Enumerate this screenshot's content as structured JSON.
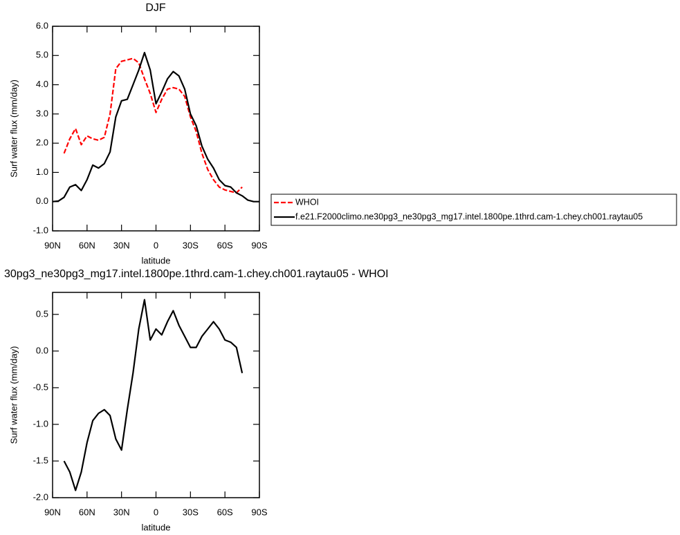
{
  "chart_data": [
    {
      "type": "line",
      "title": "DJF",
      "y_label": "Surf water flux (mm/day)",
      "x_label": "latitude",
      "x": [
        90,
        85,
        80,
        75,
        70,
        65,
        60,
        55,
        50,
        45,
        40,
        35,
        30,
        25,
        20,
        15,
        10,
        5,
        0,
        -5,
        -10,
        -15,
        -20,
        -25,
        -30,
        -35,
        -40,
        -45,
        -50,
        -55,
        -60,
        -65,
        -70,
        -75,
        -80,
        -85,
        -90
      ],
      "xlim": [
        90,
        -90
      ],
      "xticks": [
        {
          "value": 90,
          "label": "90N"
        },
        {
          "value": 60,
          "label": "60N"
        },
        {
          "value": 30,
          "label": "30N"
        },
        0,
        {
          "value": -30,
          "label": "30S"
        },
        {
          "value": -60,
          "label": "60S"
        },
        {
          "value": -90,
          "label": "90S"
        }
      ],
      "ylim": [
        -1,
        6
      ],
      "yticks": [
        {
          "value": -1,
          "label": "-1.0"
        },
        {
          "value": 0,
          "label": "0.0"
        },
        {
          "value": 1,
          "label": "1.0"
        },
        {
          "value": 2,
          "label": "2.0"
        },
        {
          "value": 3,
          "label": "3.0"
        },
        {
          "value": 4,
          "label": "4.0"
        },
        {
          "value": 5,
          "label": "5.0"
        },
        {
          "value": 6,
          "label": "6.0"
        }
      ],
      "series": [
        {
          "name": "WHOI",
          "color": "#ff0000",
          "dashed": true,
          "values": [
            null,
            null,
            1.65,
            2.15,
            2.5,
            1.95,
            2.25,
            2.15,
            2.1,
            2.2,
            3.0,
            4.55,
            4.8,
            4.85,
            4.9,
            4.75,
            4.2,
            3.7,
            3.05,
            3.5,
            3.85,
            3.9,
            3.85,
            3.6,
            2.9,
            2.4,
            1.65,
            1.1,
            0.75,
            0.5,
            0.4,
            0.35,
            0.3,
            0.5,
            null,
            null,
            null
          ]
        },
        {
          "name": "f.e21.F2000climo.ne30pg3_ne30pg3_mg17.intel.1800pe.1thrd.cam-1.chey.ch001.raytau05",
          "color": "#000000",
          "dashed": false,
          "values": [
            0.0,
            0.02,
            0.15,
            0.5,
            0.58,
            0.38,
            0.75,
            1.25,
            1.15,
            1.3,
            1.7,
            2.9,
            3.45,
            3.5,
            4.0,
            4.5,
            5.1,
            4.5,
            3.35,
            3.75,
            4.2,
            4.45,
            4.3,
            3.85,
            3.0,
            2.6,
            1.9,
            1.45,
            1.15,
            0.75,
            0.55,
            0.5,
            0.3,
            0.2,
            0.05,
            0.0,
            0.0
          ]
        }
      ]
    },
    {
      "type": "line",
      "title": "30pg3_ne30pg3_mg17.intel.1800pe.1thrd.cam-1.chey.ch001.raytau05 - WHOI",
      "y_label": "Surf water flux (mm/day)",
      "x_label": "latitude",
      "x": [
        90,
        85,
        80,
        75,
        70,
        65,
        60,
        55,
        50,
        45,
        40,
        35,
        30,
        25,
        20,
        15,
        10,
        5,
        0,
        -5,
        -10,
        -15,
        -20,
        -25,
        -30,
        -35,
        -40,
        -45,
        -50,
        -55,
        -60,
        -65,
        -70,
        -75,
        -80,
        -85,
        -90
      ],
      "xlim": [
        90,
        -90
      ],
      "xticks": [
        {
          "value": 90,
          "label": "90N"
        },
        {
          "value": 60,
          "label": "60N"
        },
        {
          "value": 30,
          "label": "30N"
        },
        0,
        {
          "value": -30,
          "label": "30S"
        },
        {
          "value": -60,
          "label": "60S"
        },
        {
          "value": -90,
          "label": "90S"
        }
      ],
      "ylim": [
        -2,
        0.8
      ],
      "yticks": [
        {
          "value": -2,
          "label": "-2.0"
        },
        -1.5,
        {
          "value": -1,
          "label": "-1.0"
        },
        -0.5,
        {
          "value": 0,
          "label": "0.0"
        },
        0.5
      ],
      "series": [
        {
          "color": "#000000",
          "dashed": false,
          "values": [
            null,
            null,
            -1.5,
            -1.65,
            -1.9,
            -1.65,
            -1.25,
            -0.95,
            -0.85,
            -0.8,
            -0.88,
            -1.2,
            -1.35,
            -0.8,
            -0.3,
            0.3,
            0.7,
            0.15,
            0.3,
            0.22,
            0.4,
            0.55,
            0.35,
            0.2,
            0.05,
            0.05,
            0.2,
            0.3,
            0.4,
            0.3,
            0.15,
            0.12,
            0.05,
            -0.3,
            null,
            null,
            null
          ]
        }
      ]
    }
  ]
}
